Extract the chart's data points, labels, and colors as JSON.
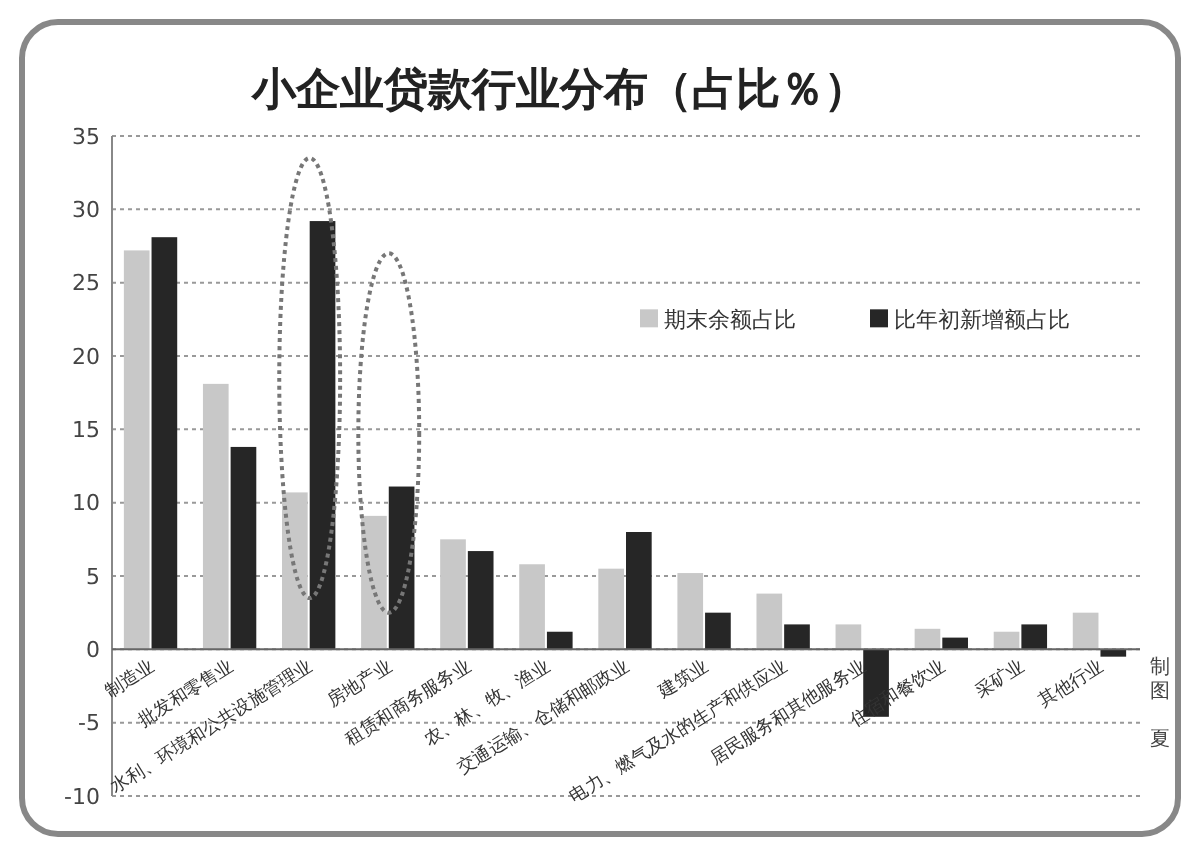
{
  "chart_data": {
    "type": "bar",
    "title": "小企业贷款行业分布（占比％）",
    "categories": [
      "制造业",
      "批发和零售业",
      "水利、环境和公共设施管理业",
      "房地产业",
      "租赁和商务服务业",
      "农、林、牧、渔业",
      "交通运输、仓储和邮政业",
      "建筑业",
      "电力、燃气及水的生产和供应业",
      "居民服务和其他服务业",
      "住宿和餐饮业",
      "采矿业",
      "其他行业"
    ],
    "series": [
      {
        "name": "期末余额占比",
        "color": "#c8c8c8",
        "values": [
          27.2,
          18.1,
          10.7,
          9.1,
          7.5,
          5.8,
          5.5,
          5.2,
          3.8,
          1.7,
          1.4,
          1.2,
          2.5
        ]
      },
      {
        "name": "比年初新增额占比",
        "color": "#262626",
        "values": [
          28.1,
          13.8,
          29.2,
          11.1,
          6.7,
          1.2,
          8.0,
          2.5,
          1.7,
          -4.6,
          0.8,
          1.7,
          -0.5
        ]
      }
    ],
    "ylim": [
      -10,
      35
    ],
    "yticks": [
      -10,
      -5,
      0,
      5,
      10,
      15,
      20,
      25,
      30,
      35
    ],
    "grid": "y",
    "legend": "top right",
    "annotations": [
      "制图",
      "夏"
    ]
  }
}
